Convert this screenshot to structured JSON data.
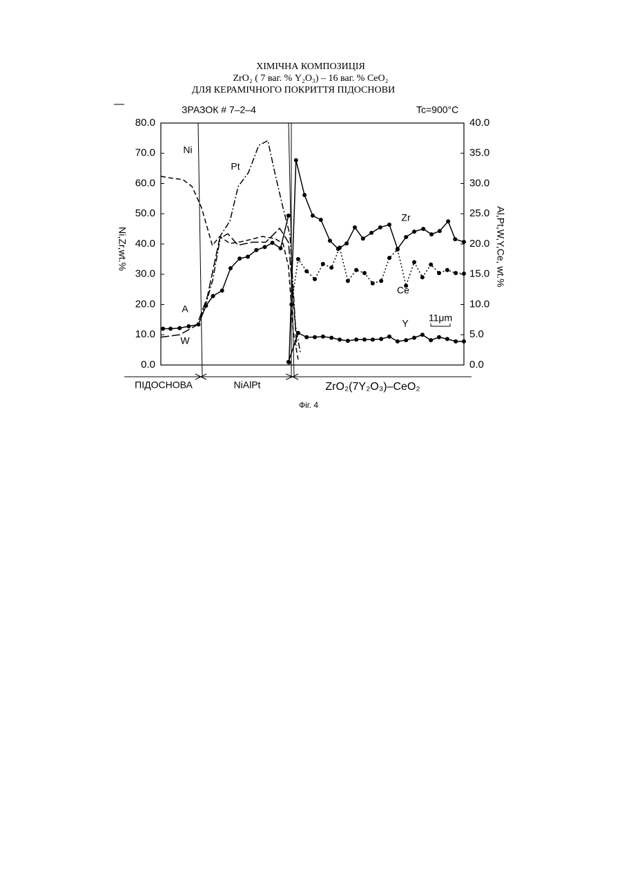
{
  "chart_data": {
    "type": "line",
    "title": [
      "ХІМІЧНА КОМПОЗИЦІЯ",
      "ZrO₂ ( 7 ваг. % Y₂O₃) – 16 ваг. % CeO₂",
      "ДЛЯ КЕРАМІЧНОГО ПОКРИТТЯ ПІДОСНОВИ"
    ],
    "sample": "ЗРАЗОК  # 7–2–4",
    "temperature": "Tc=900°C",
    "ylabel": "Ni,Zr,wt.%",
    "y2label": "Al,Pt,W,Y,Ce, wt.%",
    "regions": [
      "ПІДОСНОВА",
      "NiAlPt",
      "ZrO₂(7Y₂O₃)–CeO₂"
    ],
    "scale_bar": "11μm",
    "caption": "Фіг. 4",
    "xlim": [
      0,
      100
    ],
    "ylim": [
      0,
      80
    ],
    "yticks": [
      {
        "value": 0,
        "label": "0.0"
      },
      {
        "value": 10,
        "label": "10.0"
      },
      {
        "value": 20,
        "label": "20.0"
      },
      {
        "value": 30,
        "label": "30.0"
      },
      {
        "value": 40,
        "label": "40.0"
      },
      {
        "value": 50,
        "label": "50.0"
      },
      {
        "value": 60,
        "label": "60.0"
      },
      {
        "value": 70,
        "label": "70.0"
      },
      {
        "value": 80,
        "label": "80.0"
      }
    ],
    "y2lim": [
      0,
      40
    ],
    "y2ticks": [
      {
        "value": 0,
        "label": "0.0"
      },
      {
        "value": 5,
        "label": "5.0"
      },
      {
        "value": 10,
        "label": "10.0"
      },
      {
        "value": 15,
        "label": "15.0"
      },
      {
        "value": 20,
        "label": "20.0"
      },
      {
        "value": 25,
        "label": "25.0"
      },
      {
        "value": 30,
        "label": "30.0"
      },
      {
        "value": 35,
        "label": "35.0"
      },
      {
        "value": 40,
        "label": "40.0"
      }
    ],
    "series": [
      {
        "name": "Ni",
        "color": "#000000",
        "dash": "7,4",
        "marker": false,
        "x": [
          0,
          2.7,
          7.3,
          10.3,
          13.4,
          17,
          19.4,
          22.8,
          26.2,
          30.1,
          33.5,
          37.6,
          40.3,
          42.1,
          43.7,
          45.3
        ],
        "values": [
          62.4,
          61.9,
          61.3,
          59,
          52.1,
          39.5,
          42.5,
          40.2,
          40.7,
          41.6,
          42.5,
          41.8,
          40.2,
          32.7,
          11,
          1.8
        ]
      },
      {
        "name": "Pt",
        "color": "#000000",
        "dash": "9,3,2,3",
        "marker": false,
        "axis": "y2",
        "x": [
          12.9,
          14.8,
          17.1,
          19.8,
          22.8,
          25.5,
          28.9,
          32.3,
          35.3,
          37.6,
          40.3,
          42.6,
          44.4,
          46
        ],
        "values": [
          7.8,
          10,
          14,
          21.5,
          23.8,
          29.5,
          31.8,
          36.3,
          37.1,
          31.8,
          26,
          21.5,
          6.6,
          2.1
        ]
      },
      {
        "name": "Zr",
        "color": "#000000",
        "dash": "",
        "marker": true,
        "x": [
          42.3,
          44.6,
          47.4,
          50.1,
          52.8,
          55.8,
          58.5,
          61.3,
          64,
          66.7,
          69.5,
          72.4,
          75.4,
          78.1,
          80.9,
          83.6,
          86.6,
          89.3,
          92,
          94.8,
          97.1,
          100
        ],
        "values": [
          0.9,
          67.7,
          56.2,
          49.4,
          48,
          41.1,
          38.4,
          40.2,
          45.5,
          41.8,
          43.7,
          45.5,
          46.4,
          38.4,
          42.3,
          44.1,
          45,
          43.2,
          44.3,
          47.5,
          41.6,
          40.7
        ]
      },
      {
        "name": "Ce",
        "color": "#000000",
        "dash": "2,3",
        "marker": true,
        "axis": "y2",
        "x": [
          43.1,
          45.3,
          48.1,
          50.8,
          53.5,
          56.3,
          59,
          61.7,
          64.5,
          67.2,
          69.9,
          72.7,
          75.4,
          78.1,
          80.9,
          83.6,
          86.3,
          89.1,
          91.8,
          94.5,
          97.3,
          100
        ],
        "values": [
          10,
          17.5,
          15.5,
          14.2,
          16.7,
          16.1,
          19.4,
          13.9,
          15.7,
          15.2,
          13.5,
          13.9,
          17.7,
          19.1,
          13.1,
          17,
          14.5,
          16.6,
          15.2,
          15.7,
          15.2,
          15.1
        ]
      },
      {
        "name": "A",
        "color": "#000000",
        "dash": "",
        "marker": true,
        "axis": "y2",
        "x": [
          0.7,
          3.2,
          6.2,
          9.2,
          12.4,
          14.9,
          17.2,
          20.2,
          23,
          26,
          28.7,
          31.5,
          34.3,
          36.8,
          39.5,
          42.1
        ],
        "values": [
          6,
          6,
          6.1,
          6.4,
          6.7,
          9.8,
          11.4,
          12.3,
          16,
          17.6,
          17.9,
          19,
          19.5,
          20.2,
          19.3,
          24.7
        ]
      },
      {
        "name": "W",
        "color": "#000000",
        "dash": "12,4",
        "marker": false,
        "axis": "y2",
        "x": [
          0,
          6.2,
          11.9,
          15.3,
          19.4,
          22.1,
          25.5,
          30.1,
          34.6,
          39.2,
          42.1,
          43.7,
          44.8
        ],
        "values": [
          4.6,
          5,
          6.6,
          11.2,
          20.9,
          21.7,
          19.8,
          20.3,
          20.3,
          22.6,
          20.3,
          11.2,
          3.2
        ]
      },
      {
        "name": "Y",
        "color": "#000000",
        "dash": "",
        "marker": true,
        "axis": "y2",
        "x": [
          42.1,
          45.3,
          48.1,
          50.8,
          53.5,
          56.3,
          59,
          61.7,
          64.5,
          67.2,
          69.9,
          72.7,
          75.4,
          78.1,
          80.9,
          83.6,
          86.3,
          89.1,
          91.8,
          94.5,
          97.3,
          100
        ],
        "values": [
          0.5,
          5.3,
          4.6,
          4.6,
          4.7,
          4.5,
          4.2,
          4,
          4.2,
          4.2,
          4.2,
          4.3,
          4.7,
          3.9,
          4.1,
          4.5,
          5,
          4.1,
          4.6,
          4.3,
          3.9,
          3.9
        ]
      }
    ]
  }
}
